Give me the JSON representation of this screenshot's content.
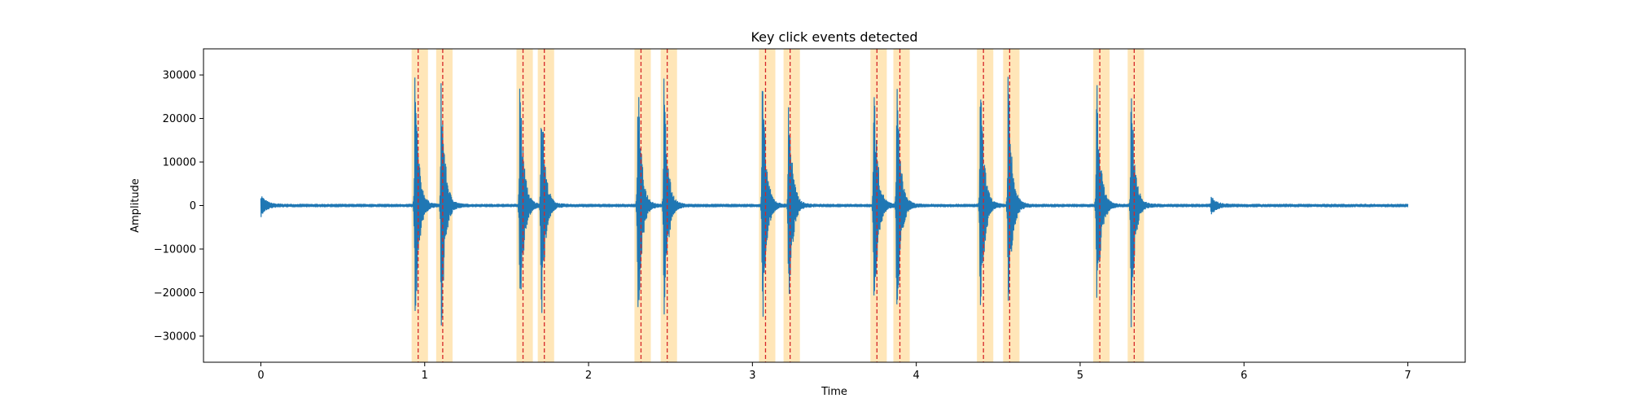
{
  "chart_data": {
    "type": "line",
    "title": "Key click events detected",
    "xlabel": "Time",
    "ylabel": "Amplitude",
    "xlim": [
      -0.35,
      7.35
    ],
    "ylim": [
      -36000,
      36000
    ],
    "x_ticks": [
      0,
      1,
      2,
      3,
      4,
      5,
      6,
      7
    ],
    "x_tick_labels": [
      "0",
      "1",
      "2",
      "3",
      "4",
      "5",
      "6",
      "7"
    ],
    "y_ticks": [
      -30000,
      -20000,
      -10000,
      0,
      10000,
      20000,
      30000
    ],
    "y_tick_labels": [
      "−30000",
      "−20000",
      "−10000",
      "0",
      "10000",
      "20000",
      "30000"
    ],
    "grid": false,
    "colors": {
      "waveform": "#1f77b4",
      "event_band": "#ffa500",
      "event_line": "#d62728"
    },
    "series": [
      {
        "style": "waveform",
        "x_range": [
          0,
          7.0
        ],
        "bursts": [
          {
            "t": 0.0,
            "peak": 2500
          },
          {
            "t": 0.94,
            "peak": 33000
          },
          {
            "t": 1.1,
            "peak": 33500
          },
          {
            "t": 1.58,
            "peak": 33500
          },
          {
            "t": 1.71,
            "peak": 31000
          },
          {
            "t": 2.3,
            "peak": 33500
          },
          {
            "t": 2.46,
            "peak": 31000
          },
          {
            "t": 3.06,
            "peak": 33000
          },
          {
            "t": 3.22,
            "peak": 29000
          },
          {
            "t": 3.74,
            "peak": 33000
          },
          {
            "t": 3.88,
            "peak": 32000
          },
          {
            "t": 4.39,
            "peak": 33000
          },
          {
            "t": 4.56,
            "peak": 32000
          },
          {
            "t": 5.1,
            "peak": 33500
          },
          {
            "t": 5.31,
            "peak": 32000
          },
          {
            "t": 5.8,
            "peak": 2000
          }
        ],
        "noise_floor": 400
      }
    ],
    "events": [
      {
        "time": 0.96,
        "start": 0.92,
        "end": 1.02
      },
      {
        "time": 1.11,
        "start": 1.07,
        "end": 1.17
      },
      {
        "time": 1.6,
        "start": 1.56,
        "end": 1.66
      },
      {
        "time": 1.73,
        "start": 1.69,
        "end": 1.79
      },
      {
        "time": 2.32,
        "start": 2.28,
        "end": 2.38
      },
      {
        "time": 2.48,
        "start": 2.44,
        "end": 2.54
      },
      {
        "time": 3.08,
        "start": 3.04,
        "end": 3.14
      },
      {
        "time": 3.23,
        "start": 3.19,
        "end": 3.29
      },
      {
        "time": 3.76,
        "start": 3.72,
        "end": 3.82
      },
      {
        "time": 3.9,
        "start": 3.86,
        "end": 3.96
      },
      {
        "time": 4.41,
        "start": 4.37,
        "end": 4.47
      },
      {
        "time": 4.57,
        "start": 4.53,
        "end": 4.63
      },
      {
        "time": 5.12,
        "start": 5.08,
        "end": 5.18
      },
      {
        "time": 5.33,
        "start": 5.29,
        "end": 5.39
      }
    ]
  }
}
